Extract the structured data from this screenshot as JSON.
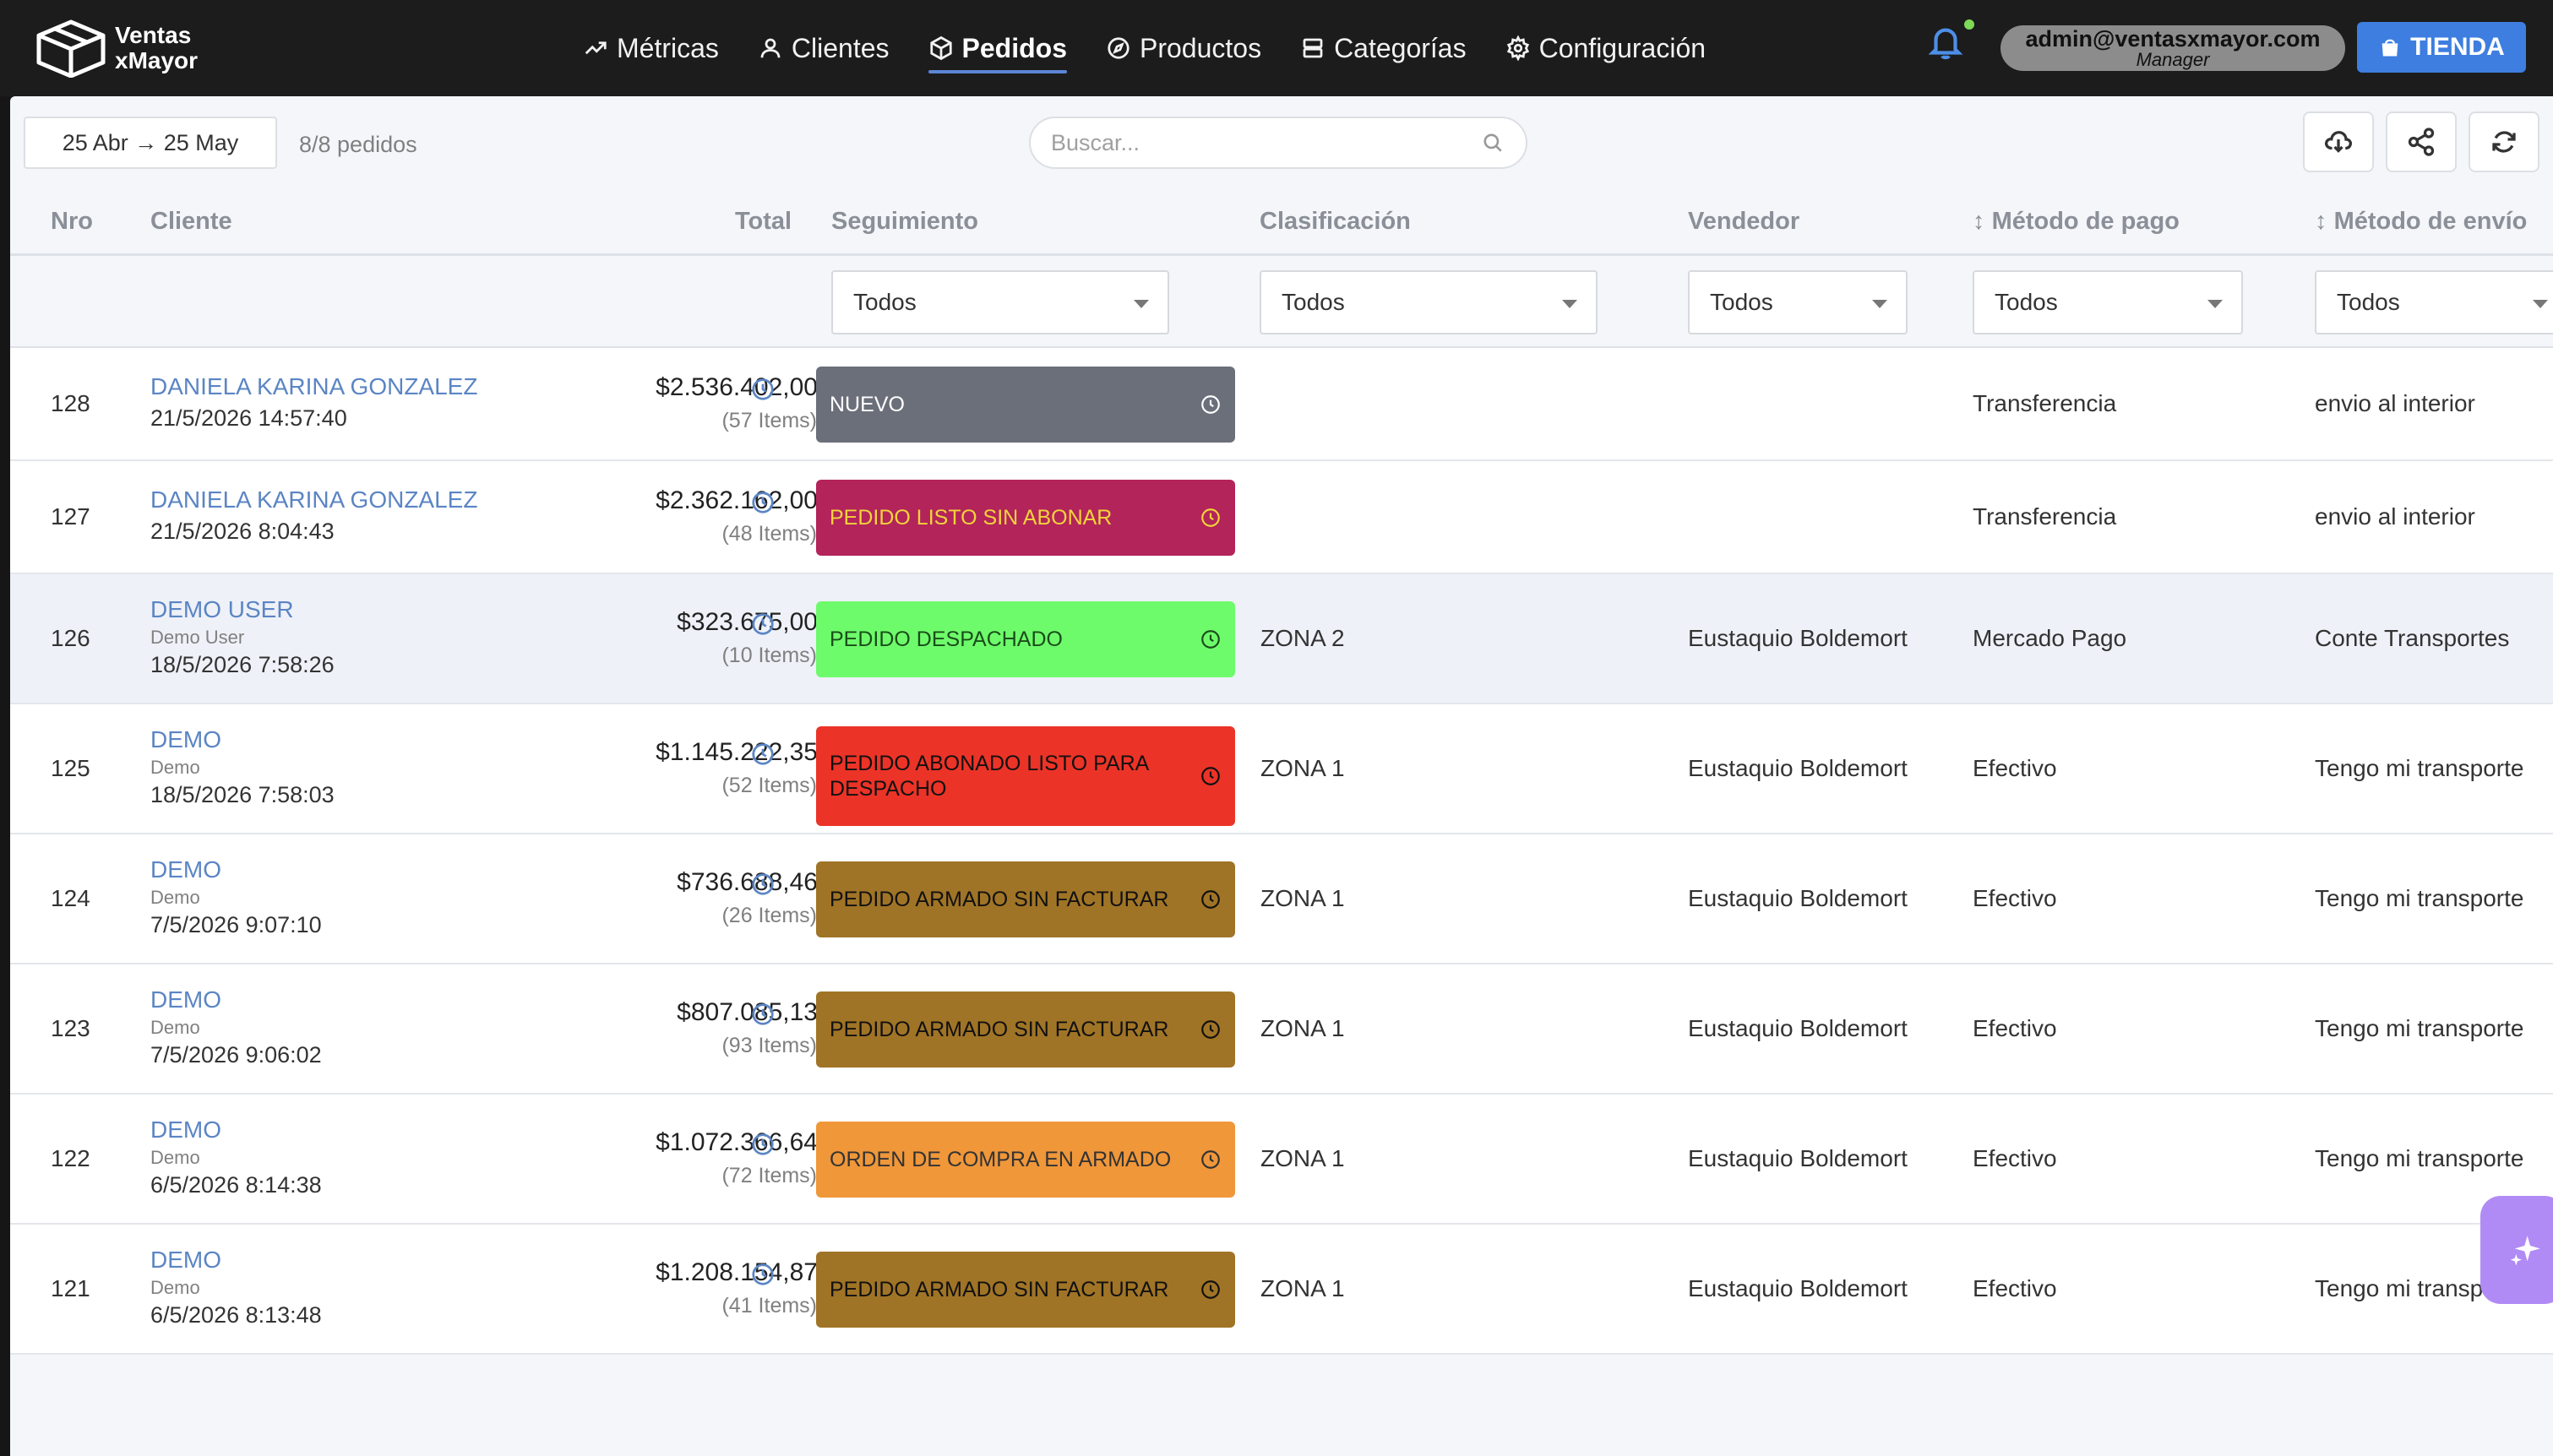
{
  "brand": {
    "line1": "Ventas",
    "line2": "xMayor"
  },
  "nav": [
    {
      "label": "Métricas",
      "icon": "trend-icon"
    },
    {
      "label": "Clientes",
      "icon": "user-icon"
    },
    {
      "label": "Pedidos",
      "icon": "box-icon",
      "active": true
    },
    {
      "label": "Productos",
      "icon": "compass-icon"
    },
    {
      "label": "Categorías",
      "icon": "list-icon"
    },
    {
      "label": "Configuración",
      "icon": "gear-icon"
    }
  ],
  "user": {
    "email": "admin@ventasxmayor.com",
    "role": "Manager"
  },
  "store_button": "TIENDA",
  "toolbar": {
    "date_range": "25 Abr → 25 May",
    "order_count": "8/8 pedidos",
    "search_placeholder": "Buscar..."
  },
  "columns": {
    "nro": "Nro",
    "cliente": "Cliente",
    "total": "Total",
    "seguimiento": "Seguimiento",
    "clasificacion": "Clasificación",
    "vendedor": "Vendedor",
    "metodo_pago": "Método de pago",
    "metodo_envio": "Método de envío"
  },
  "filters": {
    "seguimiento": "Todos",
    "clasificacion": "Todos",
    "vendedor": "Todos",
    "metodo_pago": "Todos",
    "metodo_envio": "Todos"
  },
  "colors": {
    "NUEVO": {
      "bg": "#6b6f7a",
      "fg": "#ffffff"
    },
    "PEDIDO LISTO SIN ABONAR": {
      "bg": "#b3245a",
      "fg": "#f1d33b"
    },
    "PEDIDO DESPACHADO": {
      "bg": "#6efb6b",
      "fg": "#1a4d1a"
    },
    "PEDIDO ABONADO LISTO PARA DESPACHO": {
      "bg": "#ec3327",
      "fg": "#111111"
    },
    "PEDIDO ARMADO SIN FACTURAR": {
      "bg": "#a07426",
      "fg": "#111111"
    },
    "ORDEN DE COMPRA EN ARMADO": {
      "bg": "#f0973a",
      "fg": "#333333"
    }
  },
  "orders": [
    {
      "nro": "128",
      "cliente": "DANIELA KARINA GONZALEZ",
      "sub": "",
      "fecha": "21/5/2026 14:57:40",
      "total": "$2.536.402,00",
      "items": "(57 Items)",
      "estado": "NUEVO",
      "clasificacion": "",
      "vendedor": "",
      "pago": "Transferencia",
      "envio": "envio al interior"
    },
    {
      "nro": "127",
      "cliente": "DANIELA KARINA GONZALEZ",
      "sub": "",
      "fecha": "21/5/2026 8:04:43",
      "total": "$2.362.162,00",
      "items": "(48 Items)",
      "estado": "PEDIDO LISTO SIN ABONAR",
      "clasificacion": "",
      "vendedor": "",
      "pago": "Transferencia",
      "envio": "envio al interior"
    },
    {
      "nro": "126",
      "cliente": "DEMO USER",
      "sub": "Demo User",
      "fecha": "18/5/2026 7:58:26",
      "total": "$323.675,00",
      "items": "(10 Items)",
      "estado": "PEDIDO DESPACHADO",
      "clasificacion": "ZONA 2",
      "vendedor": "Eustaquio Boldemort",
      "pago": "Mercado Pago",
      "envio": "Conte Transportes"
    },
    {
      "nro": "125",
      "cliente": "DEMO",
      "sub": "Demo",
      "fecha": "18/5/2026 7:58:03",
      "total": "$1.145.222,35",
      "items": "(52 Items)",
      "estado": "PEDIDO ABONADO LISTO PARA DESPACHO",
      "clasificacion": "ZONA 1",
      "vendedor": "Eustaquio Boldemort",
      "pago": "Efectivo",
      "envio": "Tengo mi transporte"
    },
    {
      "nro": "124",
      "cliente": "DEMO",
      "sub": "Demo",
      "fecha": "7/5/2026 9:07:10",
      "total": "$736.688,46",
      "items": "(26 Items)",
      "estado": "PEDIDO ARMADO SIN FACTURAR",
      "clasificacion": "ZONA 1",
      "vendedor": "Eustaquio Boldemort",
      "pago": "Efectivo",
      "envio": "Tengo mi transporte"
    },
    {
      "nro": "123",
      "cliente": "DEMO",
      "sub": "Demo",
      "fecha": "7/5/2026 9:06:02",
      "total": "$807.085,13",
      "items": "(93 Items)",
      "estado": "PEDIDO ARMADO SIN FACTURAR",
      "clasificacion": "ZONA 1",
      "vendedor": "Eustaquio Boldemort",
      "pago": "Efectivo",
      "envio": "Tengo mi transporte"
    },
    {
      "nro": "122",
      "cliente": "DEMO",
      "sub": "Demo",
      "fecha": "6/5/2026 8:14:38",
      "total": "$1.072.366,64",
      "items": "(72 Items)",
      "estado": "ORDEN DE COMPRA EN ARMADO",
      "clasificacion": "ZONA 1",
      "vendedor": "Eustaquio Boldemort",
      "pago": "Efectivo",
      "envio": "Tengo mi transporte"
    },
    {
      "nro": "121",
      "cliente": "DEMO",
      "sub": "Demo",
      "fecha": "6/5/2026 8:13:48",
      "total": "$1.208.154,87",
      "items": "(41 Items)",
      "estado": "PEDIDO ARMADO SIN FACTURAR",
      "clasificacion": "ZONA 1",
      "vendedor": "Eustaquio Boldemort",
      "pago": "Efectivo",
      "envio": "Tengo mi transporte"
    }
  ]
}
